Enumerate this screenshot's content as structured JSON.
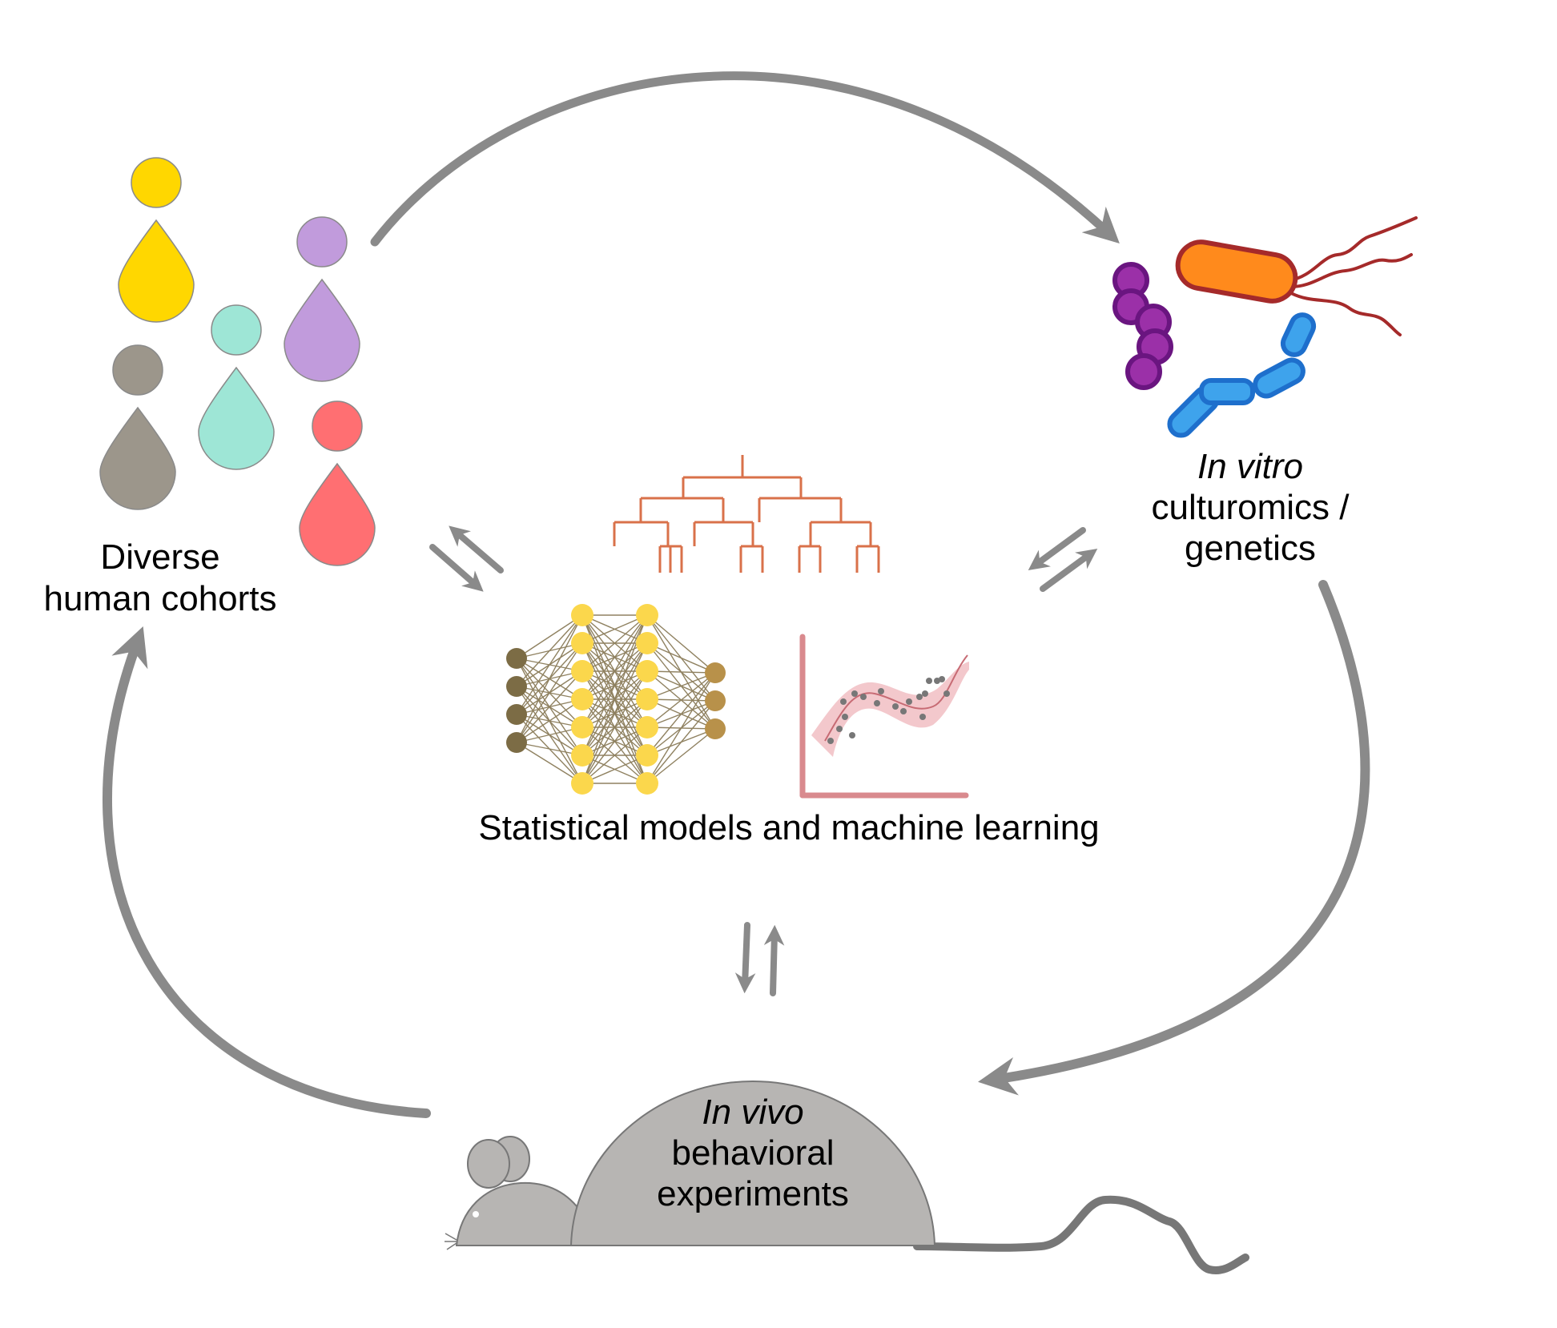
{
  "nodes": {
    "humans": {
      "label_line1": "Diverse",
      "label_line2": "human cohorts"
    },
    "invitro": {
      "label_italic": "In vitro",
      "label_line2": "culturomics /",
      "label_line3": "genetics"
    },
    "models": {
      "label": "Statistical models and machine learning"
    },
    "invivo": {
      "label_italic": "In vivo",
      "label_line2": "behavioral",
      "label_line3": "experiments"
    }
  },
  "colors": {
    "arrow": "#8a8a8a",
    "person_yellow": "#ffd700",
    "person_purple": "#c19bdc",
    "person_teal": "#9ee6d6",
    "person_gray": "#9c968b",
    "person_red": "#ff6f72",
    "dendrogram": "#d9714a",
    "nn_input": "#7c6c45",
    "nn_hidden": "#fbd74c",
    "nn_output": "#b8914a",
    "regression": "#d98a8e",
    "mouse": "#b7b5b3",
    "bacteria_purple": "#9b30a8",
    "bacteria_orange": "#ff8a1c",
    "bacteria_blue": "#3ea3ec"
  }
}
